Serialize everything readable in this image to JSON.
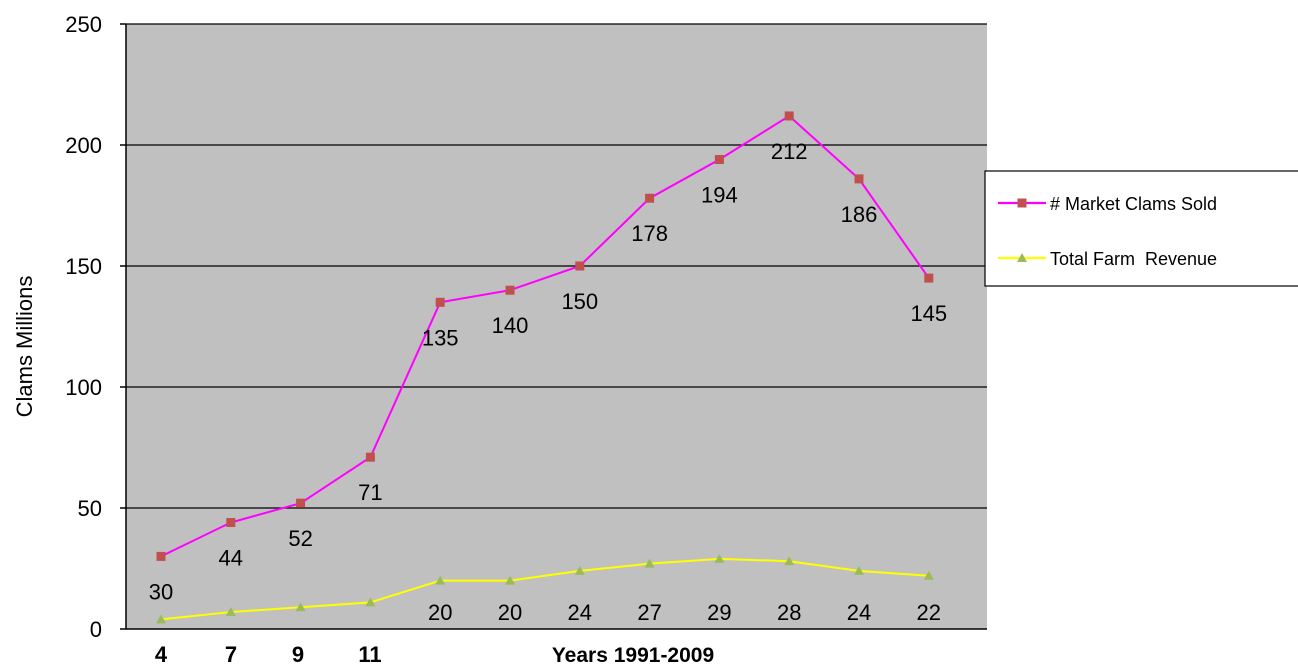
{
  "chart_data": {
    "type": "line",
    "ylabel": "Clams Millions",
    "xlabel": "Years 1991-2009",
    "ylim": [
      0,
      250
    ],
    "yticks": [
      0,
      50,
      100,
      150,
      200,
      250
    ],
    "grid": true,
    "plot_background": "#C0C0C0",
    "legend_position": "right",
    "x_category_labels": [
      "4",
      "7",
      "9",
      "11"
    ],
    "series": [
      {
        "name": "# Market Clams Sold",
        "color": "#FF00FF",
        "marker": "square",
        "marker_color": "#C0504D",
        "values": [
          30,
          44,
          52,
          71,
          135,
          140,
          150,
          178,
          194,
          212,
          186,
          145
        ],
        "labels": [
          "30",
          "44",
          "52",
          "71",
          "135",
          "140",
          "150",
          "178",
          "194",
          "212",
          "186",
          "145"
        ]
      },
      {
        "name": "Total Farm  Revenue",
        "color": "#FFFF00",
        "marker": "triangle",
        "marker_color": "#9BBB59",
        "values": [
          4,
          7,
          9,
          11,
          20,
          20,
          24,
          27,
          29,
          28,
          24,
          22
        ],
        "labels": [
          "",
          "",
          "",
          "",
          "20",
          "20",
          "24",
          "27",
          "29",
          "28",
          "24",
          "22"
        ]
      }
    ]
  }
}
